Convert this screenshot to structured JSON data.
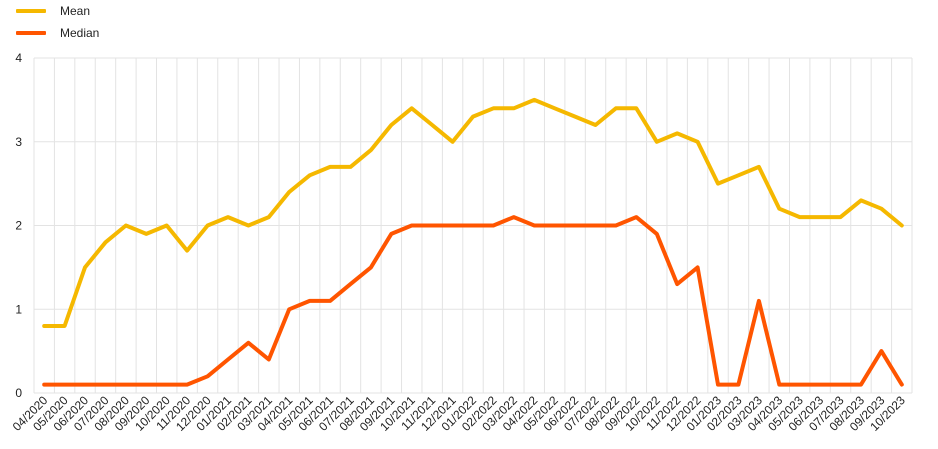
{
  "chart_data": {
    "type": "line",
    "title": "",
    "xlabel": "",
    "ylabel": "",
    "ylim": [
      0,
      4
    ],
    "yticks": [
      "0",
      "1",
      "2",
      "3",
      "4"
    ],
    "grid": true,
    "legend_position": "top-left",
    "categories": [
      "04/2020",
      "05/2020",
      "06/2020",
      "07/2020",
      "08/2020",
      "09/2020",
      "10/2020",
      "11/2020",
      "12/2020",
      "01/2021",
      "02/2021",
      "03/2021",
      "04/2021",
      "05/2021",
      "06/2021",
      "07/2021",
      "08/2021",
      "09/2021",
      "10/2021",
      "11/2021",
      "12/2021",
      "01/2022",
      "02/2022",
      "03/2022",
      "04/2022",
      "05/2022",
      "06/2022",
      "07/2022",
      "08/2022",
      "09/2022",
      "10/2022",
      "11/2022",
      "12/2022",
      "01/2023",
      "02/2023",
      "03/2023",
      "04/2023",
      "05/2023",
      "06/2023",
      "07/2023",
      "08/2023",
      "09/2023",
      "10/2023"
    ],
    "series": [
      {
        "name": "Mean",
        "color": "#F5B800",
        "values": [
          0.8,
          0.8,
          1.5,
          1.8,
          2.0,
          1.9,
          2.0,
          1.7,
          2.0,
          2.1,
          2.0,
          2.1,
          2.4,
          2.6,
          2.7,
          2.7,
          2.9,
          3.2,
          3.4,
          3.2,
          3.0,
          3.3,
          3.4,
          3.4,
          3.5,
          3.4,
          3.3,
          3.2,
          3.4,
          3.4,
          3.0,
          3.1,
          3.0,
          2.5,
          2.6,
          2.7,
          2.2,
          2.1,
          2.1,
          2.1,
          2.3,
          2.2,
          2.0
        ]
      },
      {
        "name": "Median",
        "color": "#FF5500",
        "values": [
          0.1,
          0.1,
          0.1,
          0.1,
          0.1,
          0.1,
          0.1,
          0.1,
          0.2,
          0.4,
          0.6,
          0.4,
          1.0,
          1.1,
          1.1,
          1.3,
          1.5,
          1.9,
          2.0,
          2.0,
          2.0,
          2.0,
          2.0,
          2.1,
          2.0,
          2.0,
          2.0,
          2.0,
          2.0,
          2.1,
          1.9,
          1.3,
          1.5,
          0.1,
          0.1,
          1.1,
          0.1,
          0.1,
          0.1,
          0.1,
          0.1,
          0.5,
          0.1
        ]
      }
    ]
  }
}
